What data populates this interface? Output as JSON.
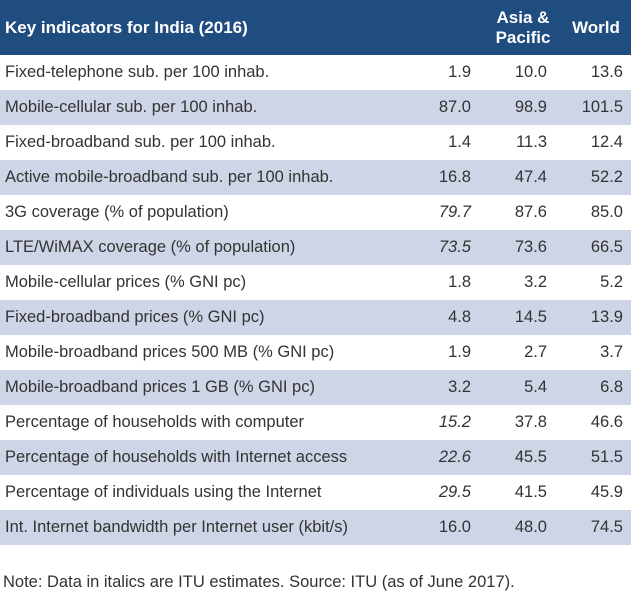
{
  "header": {
    "title": "Key indicators for India (2016)",
    "col_asia_line1": "Asia &",
    "col_asia_line2": "Pacific",
    "col_world": "World"
  },
  "rows": [
    {
      "label": "Fixed-telephone sub. per 100 inhab.",
      "india": "1.9",
      "asia": "10.0",
      "world": "13.6",
      "india_estimate": false
    },
    {
      "label": "Mobile-cellular sub. per 100 inhab.",
      "india": "87.0",
      "asia": "98.9",
      "world": "101.5",
      "india_estimate": false
    },
    {
      "label": "Fixed-broadband sub. per 100 inhab.",
      "india": "1.4",
      "asia": "11.3",
      "world": "12.4",
      "india_estimate": false
    },
    {
      "label": "Active mobile-broadband sub. per 100 inhab.",
      "india": "16.8",
      "asia": "47.4",
      "world": "52.2",
      "india_estimate": false
    },
    {
      "label": "3G coverage (% of population)",
      "india": "79.7",
      "asia": "87.6",
      "world": "85.0",
      "india_estimate": true
    },
    {
      "label": "LTE/WiMAX coverage (% of population)",
      "india": "73.5",
      "asia": "73.6",
      "world": "66.5",
      "india_estimate": true
    },
    {
      "label": "Mobile-cellular prices (% GNI pc)",
      "india": "1.8",
      "asia": "3.2",
      "world": "5.2",
      "india_estimate": false
    },
    {
      "label": "Fixed-broadband prices (% GNI pc)",
      "india": "4.8",
      "asia": "14.5",
      "world": "13.9",
      "india_estimate": false
    },
    {
      "label": "Mobile-broadband prices 500 MB (% GNI pc)",
      "india": "1.9",
      "asia": "2.7",
      "world": "3.7",
      "india_estimate": false
    },
    {
      "label": "Mobile-broadband prices 1 GB (% GNI pc)",
      "india": "3.2",
      "asia": "5.4",
      "world": "6.8",
      "india_estimate": false
    },
    {
      "label": "Percentage of households with computer",
      "india": "15.2",
      "asia": "37.8",
      "world": "46.6",
      "india_estimate": true
    },
    {
      "label": "Percentage of households with Internet access",
      "india": "22.6",
      "asia": "45.5",
      "world": "51.5",
      "india_estimate": true
    },
    {
      "label": "Percentage of individuals using the Internet",
      "india": "29.5",
      "asia": "41.5",
      "world": "45.9",
      "india_estimate": true
    },
    {
      "label": "Int. Internet bandwidth per Internet user (kbit/s)",
      "india": "16.0",
      "asia": "48.0",
      "world": "74.5",
      "india_estimate": false
    }
  ],
  "note": "Note: Data in italics are ITU estimates. Source: ITU (as of June 2017).",
  "colors": {
    "header_bg": "#1f4d80",
    "stripe_bg": "#cdd5e6",
    "header_text": "#ffffff",
    "body_text": "#333333"
  }
}
